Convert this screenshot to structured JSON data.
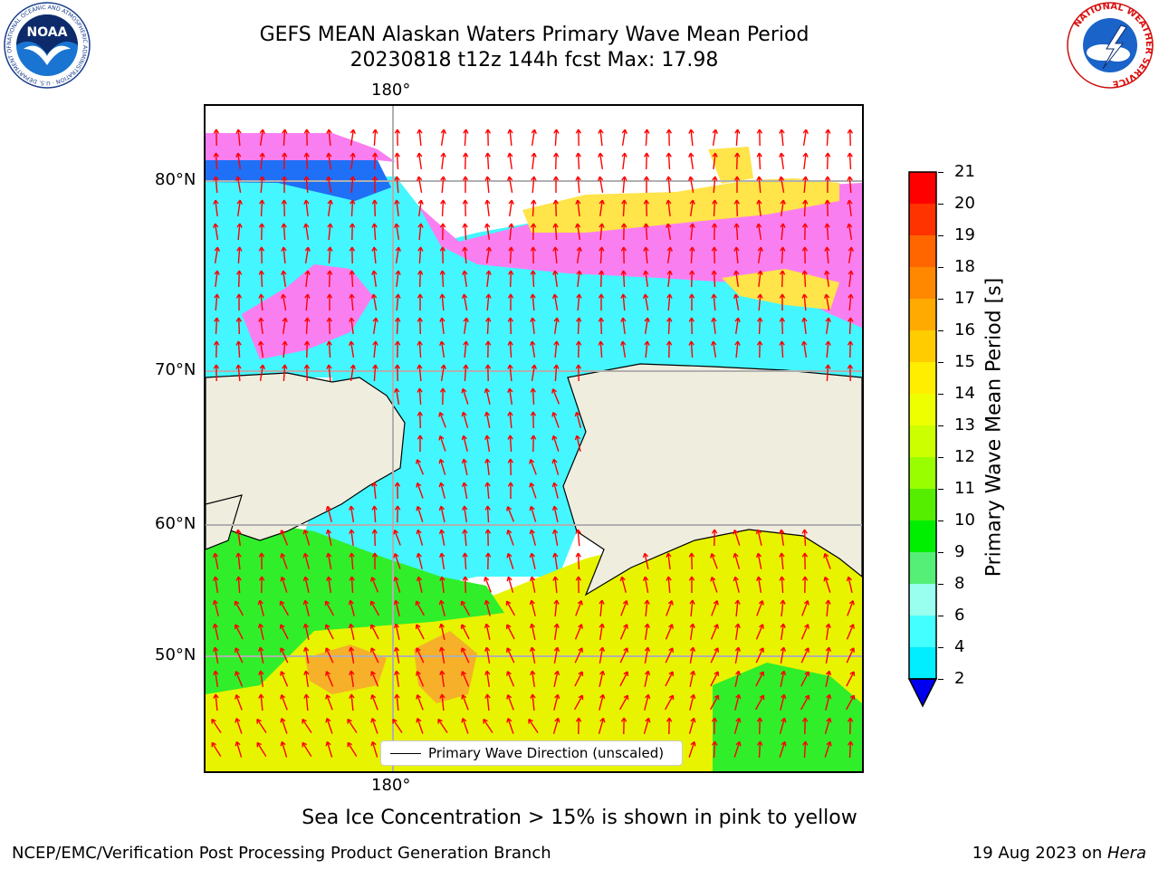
{
  "title": {
    "line1": "GEFS MEAN Alaskan Waters Primary Wave Mean Period",
    "line2": "20230818 t12z 144h fcst   Max: 17.98"
  },
  "map": {
    "lon_label_top": "180°",
    "lon_label_bottom": "180°",
    "lat_labels": [
      "80°N",
      "70°N",
      "60°N",
      "50°N"
    ],
    "colors": {
      "land": "#efedde",
      "ice_pink": "#f97ff0",
      "ice_yellow": "#ffe44a",
      "dark_blue": "#1f6ff7",
      "cyan": "#43f6ff",
      "green": "#30ee2a",
      "yellow": "#e8f300",
      "orange": "#f7b02a",
      "arrow": "#ff0000",
      "grid": "#b0b0b0"
    },
    "legend": "Primary Wave Direction (unscaled)"
  },
  "colorbar": {
    "title": "Primary Wave Mean Period [s]",
    "ticks": [
      "21",
      "20",
      "19",
      "18",
      "17",
      "16",
      "15",
      "14",
      "13",
      "12",
      "11",
      "10",
      "9",
      "8",
      "6",
      "4",
      "2"
    ],
    "colors": [
      "#ff0000",
      "#ff3300",
      "#ff6600",
      "#ff8800",
      "#ffaa00",
      "#ffcc00",
      "#ffee00",
      "#eeff00",
      "#ccff00",
      "#99ff00",
      "#55ee00",
      "#00ee00",
      "#55ee77",
      "#99ffee",
      "#44ffff",
      "#00eeff",
      "#0099ff",
      "#0000ff"
    ],
    "extend_color": "#0000ee"
  },
  "logos": {
    "noaa": "NOAA",
    "noaa_ring": "NATIONAL OCEANIC AND ATMOSPHERIC ADMINISTRATION · U.S. DEPARTMENT OF COMMERCE",
    "nws_ring": "NATIONAL WEATHER SERVICE"
  },
  "footer": {
    "note": "Sea Ice Concentration > 15% is shown in pink to yellow",
    "org": "NCEP/EMC/Verification Post Processing Product Generation Branch",
    "date": "19 Aug 2023 on ",
    "host": "Hera"
  }
}
